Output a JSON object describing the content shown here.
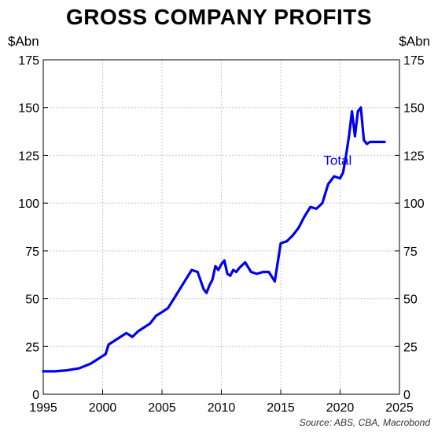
{
  "chart_data": {
    "type": "line",
    "title": "GROSS COMPANY PROFITS",
    "ylabel_left": "$Abn",
    "ylabel_right": "$Abn",
    "source": "Source: ABS, CBA, Macrobond",
    "xlim": [
      1995,
      2025
    ],
    "ylim": [
      0,
      175
    ],
    "x_ticks": [
      1995,
      2000,
      2005,
      2010,
      2015,
      2020,
      2025
    ],
    "y_ticks": [
      0,
      25,
      50,
      75,
      100,
      125,
      150,
      175
    ],
    "grid": true,
    "legend": "inline labels",
    "x": [
      1995.0,
      1996.0,
      1997.0,
      1998.0,
      1999.0,
      1999.75,
      2000.0,
      2000.25,
      2000.5,
      2001.0,
      2001.5,
      2002.0,
      2002.5,
      2003.0,
      2003.5,
      2004.0,
      2004.5,
      2005.0,
      2005.5,
      2006.0,
      2006.5,
      2007.0,
      2007.5,
      2008.0,
      2008.5,
      2008.75,
      2009.0,
      2009.25,
      2009.5,
      2009.75,
      2010.0,
      2010.25,
      2010.5,
      2010.75,
      2011.0,
      2011.25,
      2011.5,
      2012.0,
      2012.5,
      2013.0,
      2013.5,
      2014.0,
      2014.5,
      2015.0,
      2015.5,
      2016.0,
      2016.5,
      2017.0,
      2017.5,
      2018.0,
      2018.5,
      2019.0,
      2019.5,
      2020.0,
      2020.25,
      2020.5,
      2020.75,
      2021.0,
      2021.25,
      2021.5,
      2021.75,
      2022.0,
      2022.25,
      2022.5,
      2022.75,
      2023.0,
      2023.25,
      2023.5,
      2023.75
    ],
    "series": [
      {
        "name": "Total",
        "color": "#0000ee",
        "label_at": [
          2018.6,
          120
        ],
        "values": [
          12,
          12,
          12.5,
          13.5,
          16,
          19,
          20,
          21,
          26,
          28,
          30,
          32,
          30,
          33,
          35,
          37,
          41,
          43,
          45,
          50,
          55,
          60,
          65,
          64,
          55,
          53,
          57,
          60,
          67,
          65,
          68,
          70,
          63,
          62,
          65,
          64,
          66,
          69,
          64,
          63,
          64,
          64,
          59,
          79,
          80,
          83,
          87,
          93,
          98,
          97,
          100,
          110,
          114,
          113,
          116,
          125,
          135,
          148,
          135,
          148,
          150,
          133,
          131,
          132,
          132,
          132,
          132,
          132,
          132
        ],
        "values_note": ""
      }
    ]
  }
}
